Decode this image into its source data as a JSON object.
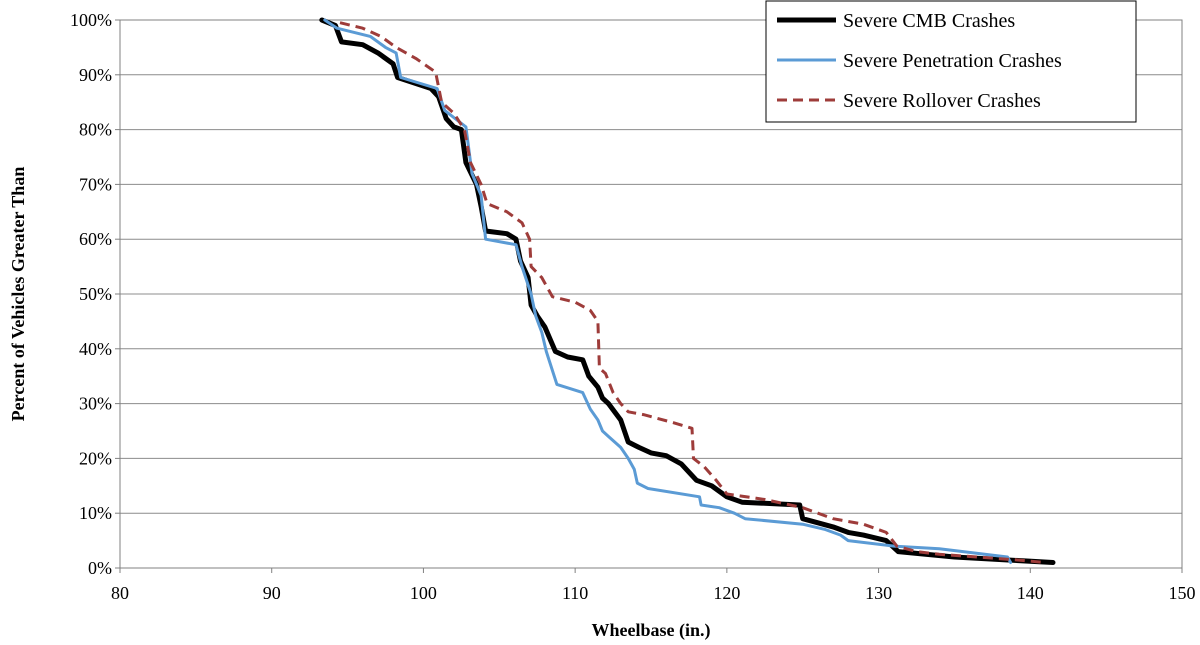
{
  "chart_data": {
    "type": "line",
    "title": "",
    "xlabel": "Wheelbase (in.)",
    "ylabel": "Percent of Vehicles Greater Than",
    "xlim": [
      80,
      150
    ],
    "ylim": [
      0,
      100
    ],
    "x_ticks": [
      "80",
      "90",
      "100",
      "110",
      "120",
      "130",
      "140",
      "150"
    ],
    "y_ticks": [
      "0%",
      "10%",
      "20%",
      "30%",
      "40%",
      "50%",
      "60%",
      "70%",
      "80%",
      "90%",
      "100%"
    ],
    "grid": "horizontal",
    "legend_position": "top-right",
    "series": [
      {
        "name": "Severe CMB Crashes",
        "color": "#000000",
        "style": "solid-thick",
        "points": [
          [
            93.3,
            100
          ],
          [
            94.2,
            99
          ],
          [
            94.6,
            96
          ],
          [
            96,
            95.5
          ],
          [
            97,
            94
          ],
          [
            98,
            92
          ],
          [
            98.3,
            89.5
          ],
          [
            100.5,
            87.5
          ],
          [
            101,
            86
          ],
          [
            101.5,
            82
          ],
          [
            102,
            80.5
          ],
          [
            102.5,
            80
          ],
          [
            102.8,
            74
          ],
          [
            103.5,
            70
          ],
          [
            103.8,
            66
          ],
          [
            104.1,
            61.5
          ],
          [
            105.5,
            61
          ],
          [
            106.1,
            60
          ],
          [
            106.4,
            56
          ],
          [
            106.9,
            53
          ],
          [
            107.1,
            48
          ],
          [
            107.5,
            46
          ],
          [
            108,
            44
          ],
          [
            108.7,
            39.5
          ],
          [
            109.5,
            38.5
          ],
          [
            110.5,
            38
          ],
          [
            110.9,
            35
          ],
          [
            111.5,
            33
          ],
          [
            111.8,
            31
          ],
          [
            112.2,
            30
          ],
          [
            113,
            27
          ],
          [
            113.5,
            23
          ],
          [
            114.2,
            22
          ],
          [
            115,
            21
          ],
          [
            116,
            20.5
          ],
          [
            117,
            19
          ],
          [
            118,
            16
          ],
          [
            119,
            15
          ],
          [
            120,
            13
          ],
          [
            121,
            12
          ],
          [
            124.8,
            11.5
          ],
          [
            125,
            9
          ],
          [
            127,
            7.5
          ],
          [
            128,
            6.5
          ],
          [
            129,
            6
          ],
          [
            130.5,
            5
          ],
          [
            131.3,
            3
          ],
          [
            135,
            2
          ],
          [
            141.5,
            1
          ]
        ]
      },
      {
        "name": "Severe Penetration Crashes",
        "color": "#5b9bd5",
        "style": "solid",
        "points": [
          [
            93.5,
            100
          ],
          [
            94.3,
            98.5
          ],
          [
            96.5,
            97
          ],
          [
            97.5,
            95
          ],
          [
            98.2,
            94
          ],
          [
            98.5,
            89.5
          ],
          [
            100.9,
            87.5
          ],
          [
            101.4,
            83.5
          ],
          [
            102.8,
            80.5
          ],
          [
            103.2,
            72
          ],
          [
            103.8,
            68
          ],
          [
            104.1,
            60
          ],
          [
            106.1,
            59
          ],
          [
            106.5,
            55
          ],
          [
            107.1,
            50
          ],
          [
            107.4,
            46
          ],
          [
            107.8,
            43
          ],
          [
            108.1,
            39.5
          ],
          [
            108.8,
            33.5
          ],
          [
            110.5,
            32
          ],
          [
            111,
            29
          ],
          [
            111.5,
            27
          ],
          [
            111.8,
            25
          ],
          [
            112.2,
            24
          ],
          [
            113,
            22
          ],
          [
            113.5,
            20
          ],
          [
            113.9,
            18
          ],
          [
            114.1,
            15.5
          ],
          [
            114.8,
            14.5
          ],
          [
            118.2,
            13
          ],
          [
            118.3,
            11.5
          ],
          [
            119.5,
            11
          ],
          [
            120.5,
            10
          ],
          [
            121.2,
            9
          ],
          [
            125,
            8
          ],
          [
            126.5,
            7
          ],
          [
            127.5,
            6
          ],
          [
            128,
            5
          ],
          [
            131,
            4
          ],
          [
            134,
            3.5
          ],
          [
            138.5,
            2
          ],
          [
            138.7,
            1
          ]
        ]
      },
      {
        "name": "Severe Rollover Crashes",
        "color": "#9e3c3a",
        "style": "dashed",
        "points": [
          [
            94.5,
            99.5
          ],
          [
            96,
            98.5
          ],
          [
            97.2,
            97
          ],
          [
            98.2,
            95
          ],
          [
            99.5,
            93
          ],
          [
            100.8,
            90.5
          ],
          [
            101.2,
            85
          ],
          [
            102,
            83
          ],
          [
            102.7,
            80
          ],
          [
            103.1,
            74
          ],
          [
            103.8,
            70
          ],
          [
            104.2,
            66.5
          ],
          [
            105.5,
            65
          ],
          [
            106.5,
            63
          ],
          [
            107,
            60
          ],
          [
            107.1,
            55
          ],
          [
            107.8,
            53
          ],
          [
            108.5,
            49.5
          ],
          [
            110,
            48.5
          ],
          [
            111,
            47
          ],
          [
            111.5,
            45
          ],
          [
            111.6,
            36.5
          ],
          [
            112,
            35.5
          ],
          [
            112.5,
            32
          ],
          [
            113,
            30
          ],
          [
            113.5,
            28.5
          ],
          [
            114.5,
            28
          ],
          [
            116.5,
            26.5
          ],
          [
            117.7,
            25.5
          ],
          [
            117.8,
            20
          ],
          [
            118.5,
            18.5
          ],
          [
            119.3,
            16
          ],
          [
            120,
            13.5
          ],
          [
            122.5,
            12.5
          ],
          [
            125,
            11
          ],
          [
            127,
            9
          ],
          [
            129,
            8
          ],
          [
            130.5,
            6.5
          ],
          [
            131.2,
            4
          ],
          [
            132.5,
            3
          ],
          [
            134,
            2.5
          ],
          [
            136.5,
            2
          ],
          [
            139,
            1.5
          ],
          [
            141,
            1
          ]
        ]
      }
    ]
  }
}
